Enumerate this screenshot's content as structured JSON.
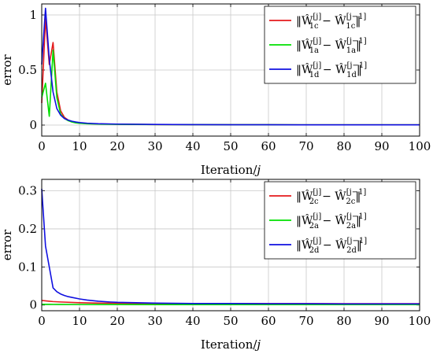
{
  "chart_data": [
    {
      "type": "line",
      "title": "",
      "xlabel": "Iteration/j",
      "ylabel": "error",
      "xlim": [
        0,
        100
      ],
      "ylim": [
        -0.1,
        1.1
      ],
      "xticks": [
        0,
        10,
        20,
        30,
        40,
        50,
        60,
        70,
        80,
        90,
        100
      ],
      "yticks": [
        0,
        0.5,
        1
      ],
      "ytick_labels": [
        "0",
        "0.5",
        "1"
      ],
      "grid": true,
      "legend_position": "top-right",
      "series": [
        {
          "name": "‖Ŵ1c[j] − Ŵ1c[j−1]‖",
          "name_parts": {
            "letter": "‖Ŵ",
            "sub": "1c",
            "sup": "[j]",
            "mid": " − Ŵ",
            "sub2": "1c",
            "sup2": "[j−1]",
            "end": "‖"
          },
          "color": "#e41a1c",
          "x": [
            0,
            1,
            2,
            3,
            4,
            5,
            6,
            7,
            8,
            9,
            10,
            12,
            15,
            20,
            30,
            40,
            50,
            60,
            70,
            80,
            90,
            100
          ],
          "y": [
            0.2,
            0.97,
            0.55,
            0.75,
            0.3,
            0.13,
            0.07,
            0.045,
            0.03,
            0.022,
            0.018,
            0.014,
            0.01,
            0.008,
            0.005,
            0.004,
            0.003,
            0.003,
            0.002,
            0.002,
            0.002,
            0.002
          ]
        },
        {
          "name": "‖Ŵ1a[j] − Ŵ1a[j−1]‖",
          "name_parts": {
            "letter": "‖Ŵ",
            "sub": "1a",
            "sup": "[j]",
            "mid": " − Ŵ",
            "sub2": "1a",
            "sup2": "[j−1]",
            "end": "‖"
          },
          "color": "#00e000",
          "x": [
            0,
            1,
            2,
            3,
            4,
            5,
            6,
            7,
            8,
            9,
            10,
            12,
            15,
            20,
            30,
            40,
            50,
            60,
            70,
            80,
            90,
            100
          ],
          "y": [
            0.25,
            0.38,
            0.08,
            0.68,
            0.25,
            0.1,
            0.06,
            0.04,
            0.028,
            0.02,
            0.016,
            0.012,
            0.009,
            0.007,
            0.005,
            0.004,
            0.003,
            0.003,
            0.002,
            0.002,
            0.002,
            0.002
          ]
        },
        {
          "name": "‖Ŵ1d[j] − Ŵ1d[j−1]‖",
          "name_parts": {
            "letter": "‖Ŵ",
            "sub": "1d",
            "sup": "[j]",
            "mid": " − Ŵ",
            "sub2": "1d",
            "sup2": "[j−1]",
            "end": "‖"
          },
          "color": "#1010e0",
          "x": [
            0,
            1,
            2,
            3,
            4,
            5,
            6,
            7,
            8,
            9,
            10,
            12,
            15,
            20,
            30,
            40,
            50,
            60,
            70,
            80,
            90,
            100
          ],
          "y": [
            0.55,
            1.06,
            0.6,
            0.3,
            0.15,
            0.09,
            0.06,
            0.045,
            0.035,
            0.028,
            0.023,
            0.017,
            0.012,
            0.009,
            0.006,
            0.004,
            0.003,
            0.003,
            0.002,
            0.002,
            0.002,
            0.002
          ]
        }
      ]
    },
    {
      "type": "line",
      "title": "",
      "xlabel": "Iteration/j",
      "ylabel": "error",
      "xlim": [
        0,
        100
      ],
      "ylim": [
        -0.015,
        0.33
      ],
      "xticks": [
        0,
        10,
        20,
        30,
        40,
        50,
        60,
        70,
        80,
        90,
        100
      ],
      "yticks": [
        0,
        0.1,
        0.2,
        0.3
      ],
      "ytick_labels": [
        "0",
        "0.1",
        "0.2",
        "0.3"
      ],
      "grid": true,
      "legend_position": "top-right",
      "series": [
        {
          "name": "‖Ŵ2c[j] − Ŵ2c[j−1]‖",
          "name_parts": {
            "letter": "‖Ŵ",
            "sub": "2c",
            "sup": "[j]",
            "mid": " − Ŵ",
            "sub2": "2c",
            "sup2": "[j−1]",
            "end": "‖"
          },
          "color": "#e41a1c",
          "x": [
            0,
            1,
            2,
            3,
            5,
            10,
            15,
            20,
            30,
            40,
            50,
            60,
            70,
            80,
            90,
            100
          ],
          "y": [
            0.012,
            0.011,
            0.01,
            0.009,
            0.008,
            0.006,
            0.005,
            0.0045,
            0.004,
            0.004,
            0.004,
            0.0038,
            0.0037,
            0.0036,
            0.0035,
            0.0035
          ]
        },
        {
          "name": "‖Ŵ2a[j] − Ŵ2a[j−1]‖",
          "name_parts": {
            "letter": "‖Ŵ",
            "sub": "2a",
            "sup": "[j]",
            "mid": " − Ŵ",
            "sub2": "2a",
            "sup2": "[j−1]",
            "end": "‖"
          },
          "color": "#00e000",
          "x": [
            0,
            1,
            2,
            3,
            5,
            10,
            15,
            20,
            30,
            40,
            50,
            60,
            70,
            80,
            90,
            100
          ],
          "y": [
            0.002,
            0.002,
            0.002,
            0.0018,
            0.0016,
            0.0015,
            0.0014,
            0.0013,
            0.0012,
            0.0012,
            0.0012,
            0.0011,
            0.0011,
            0.0011,
            0.001,
            0.001
          ]
        },
        {
          "name": "‖Ŵ2d[j] − Ŵ2d[j−1]‖",
          "name_parts": {
            "letter": "‖Ŵ",
            "sub": "2d",
            "sup": "[j]",
            "mid": " − Ŵ",
            "sub2": "2d",
            "sup2": "[j−1]",
            "end": "‖"
          },
          "color": "#1010e0",
          "x": [
            0,
            1,
            2,
            3,
            4,
            5,
            6,
            7,
            8,
            10,
            12,
            15,
            18,
            20,
            25,
            30,
            40,
            50,
            60,
            70,
            80,
            90,
            100
          ],
          "y": [
            0.305,
            0.155,
            0.1,
            0.045,
            0.035,
            0.029,
            0.025,
            0.022,
            0.02,
            0.016,
            0.013,
            0.01,
            0.008,
            0.007,
            0.006,
            0.005,
            0.004,
            0.004,
            0.0035,
            0.0035,
            0.003,
            0.003,
            0.003
          ]
        }
      ]
    }
  ]
}
